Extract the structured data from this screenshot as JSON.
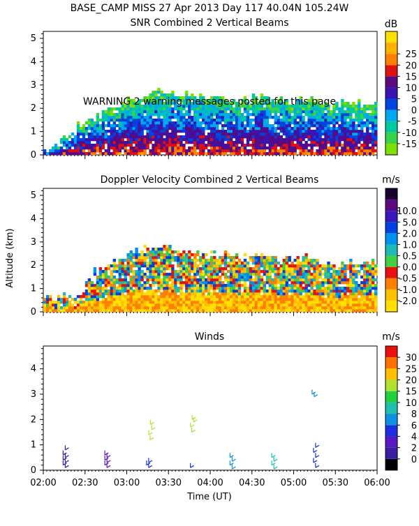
{
  "header": {
    "line1": "BASE_CAMP MISS  27 Apr 2013 Day 117 40.04N 105.24W"
  },
  "warning": "WARNING  2 warning messages posted for this page",
  "x_axis": {
    "label": "Time (UT)",
    "ticks": [
      "02:00",
      "02:30",
      "03:00",
      "03:30",
      "04:00",
      "04:30",
      "05:00",
      "05:30",
      "06:00"
    ]
  },
  "chart_data": [
    {
      "type": "heatmap",
      "title": "SNR Combined 2 Vertical Beams",
      "ylabel": "",
      "ylim": [
        0,
        5.3
      ],
      "yticks": [
        "0",
        "1",
        "2",
        "3",
        "4",
        "5"
      ],
      "colorbar": {
        "unit": "dB",
        "labels": [
          "-15",
          "-10",
          "-5",
          "0",
          "5",
          "10",
          "15",
          "20",
          "25"
        ],
        "colors": [
          "#7ee000",
          "#39d34a",
          "#00c8a0",
          "#00a8f0",
          "#0044e0",
          "#3a14b0",
          "#5a0a80",
          "#e01010",
          "#ff8000",
          "#ffb000",
          "#ffe000"
        ]
      },
      "echo_top_km": [
        0.2,
        0.5,
        0.8,
        1.1,
        1.3,
        1.5,
        1.7,
        1.9,
        2.1,
        2.3,
        2.5,
        2.6,
        2.7,
        2.8,
        2.8,
        2.8,
        2.7,
        2.7,
        2.6,
        2.6,
        2.5,
        2.6,
        2.5,
        2.4,
        2.4,
        2.5,
        2.6,
        2.4,
        2.4,
        2.3,
        2.4,
        2.5,
        2.4,
        2.3,
        2.2,
        2.3,
        2.4,
        2.3,
        2.2,
        2.3
      ]
    },
    {
      "type": "heatmap",
      "title": "Doppler Velocity Combined 2 Vertical Beams",
      "ylabel": "Altitude (km)",
      "ylim": [
        0,
        5.3
      ],
      "yticks": [
        "0",
        "1",
        "2",
        "3",
        "4",
        "5"
      ],
      "colorbar": {
        "unit": "m/s",
        "labels": [
          "-2.0",
          "-1.0",
          "-0.5",
          "0.0",
          "0.5",
          "1.0",
          "2.0",
          "5.0",
          "10.0"
        ],
        "colors": [
          "#ffe000",
          "#ffc000",
          "#ff8000",
          "#e81010",
          "#40d040",
          "#20b8b8",
          "#0090f0",
          "#0040e0",
          "#3818b8",
          "#5a0a80",
          "#1a0030"
        ]
      },
      "echo_top_km": [
        0.7,
        0.7,
        0.7,
        0.7,
        0.9,
        1.5,
        1.8,
        2.0,
        2.2,
        2.4,
        2.6,
        2.7,
        2.8,
        2.8,
        2.9,
        2.8,
        2.7,
        2.6,
        2.6,
        2.5,
        2.6,
        2.6,
        2.5,
        2.4,
        2.4,
        2.5,
        2.5,
        2.4,
        2.3,
        2.3,
        2.3,
        2.4,
        2.3,
        2.2,
        2.2,
        2.1,
        2.2,
        2.2,
        2.1,
        2.2
      ]
    },
    {
      "type": "scatter",
      "title": "Winds",
      "ylabel": "",
      "ylim": [
        0,
        4.9
      ],
      "yticks": [
        "0",
        "1",
        "2",
        "3",
        "4"
      ],
      "colorbar": {
        "unit": "m/s",
        "labels": [
          "0",
          "2",
          "4",
          "6",
          "8",
          "10",
          "15",
          "20",
          "25",
          "30"
        ],
        "colors": [
          "#000000",
          "#3a1ea0",
          "#5a18c0",
          "#1a30e0",
          "#1090e0",
          "#20c0b0",
          "#20d040",
          "#b0e030",
          "#ffc000",
          "#ff7000",
          "#e81010"
        ]
      },
      "profiles": [
        {
          "time": "02:15",
          "speed": 1,
          "alts": [
            0.1,
            0.2,
            0.3,
            0.4,
            0.5,
            0.6,
            0.8
          ]
        },
        {
          "time": "02:45",
          "speed": 2,
          "alts": [
            0.1,
            0.2,
            0.3,
            0.4,
            0.5,
            0.6
          ]
        },
        {
          "time": "03:15",
          "speed": 4,
          "alts": [
            0.1,
            0.2,
            0.3
          ]
        },
        {
          "time": "03:16",
          "speed": 15,
          "alts": [
            1.2,
            1.4,
            1.6,
            1.8
          ]
        },
        {
          "time": "03:45",
          "speed": 4,
          "alts": [
            0.1
          ]
        },
        {
          "time": "03:46",
          "speed": 16,
          "alts": [
            1.5,
            1.7,
            1.9,
            2.0
          ]
        },
        {
          "time": "04:15",
          "speed": 6,
          "alts": [
            0.05,
            0.2,
            0.35,
            0.5
          ]
        },
        {
          "time": "04:45",
          "speed": 8,
          "alts": [
            0.05,
            0.2,
            0.35,
            0.5
          ]
        },
        {
          "time": "05:15",
          "speed": 5,
          "alts": [
            0.1,
            0.3,
            0.5,
            0.7,
            0.9
          ]
        },
        {
          "time": "05:14",
          "speed": 6,
          "alts": [
            2.9,
            3.0
          ]
        }
      ]
    }
  ]
}
